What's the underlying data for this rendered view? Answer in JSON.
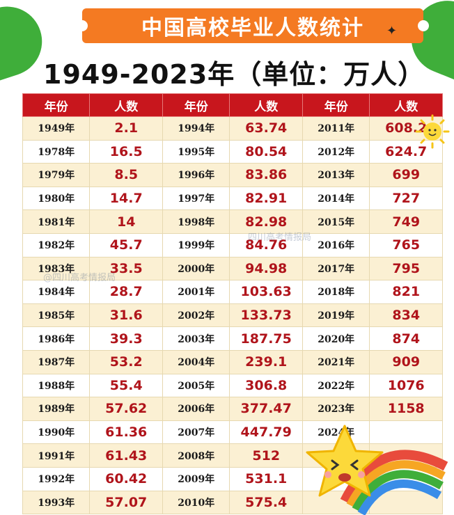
{
  "title": "中国高校毕业人数统计",
  "subtitle": "1949-2023年（单位：万人）",
  "table": {
    "headers": [
      "年份",
      "人数",
      "年份",
      "人数",
      "年份",
      "人数"
    ],
    "rows": [
      [
        "1949年",
        "2.1",
        "1994年",
        "63.74",
        "2011年",
        "608.2"
      ],
      [
        "1978年",
        "16.5",
        "1995年",
        "80.54",
        "2012年",
        "624.7"
      ],
      [
        "1979年",
        "8.5",
        "1996年",
        "83.86",
        "2013年",
        "699"
      ],
      [
        "1980年",
        "14.7",
        "1997年",
        "82.91",
        "2014年",
        "727"
      ],
      [
        "1981年",
        "14",
        "1998年",
        "82.98",
        "2015年",
        "749"
      ],
      [
        "1982年",
        "45.7",
        "1999年",
        "84.76",
        "2016年",
        "765"
      ],
      [
        "1983年",
        "33.5",
        "2000年",
        "94.98",
        "2017年",
        "795"
      ],
      [
        "1984年",
        "28.7",
        "2001年",
        "103.63",
        "2018年",
        "821"
      ],
      [
        "1985年",
        "31.6",
        "2002年",
        "133.73",
        "2019年",
        "834"
      ],
      [
        "1986年",
        "39.3",
        "2003年",
        "187.75",
        "2020年",
        "874"
      ],
      [
        "1987年",
        "53.2",
        "2004年",
        "239.1",
        "2021年",
        "909"
      ],
      [
        "1988年",
        "55.4",
        "2005年",
        "306.8",
        "2022年",
        "1076"
      ],
      [
        "1989年",
        "57.62",
        "2006年",
        "377.47",
        "2023年",
        "1158"
      ],
      [
        "1990年",
        "61.36",
        "2007年",
        "447.79",
        "2024年",
        ""
      ],
      [
        "1991年",
        "61.43",
        "2008年",
        "512",
        "20",
        ""
      ],
      [
        "1992年",
        "60.42",
        "2009年",
        "531.1",
        "",
        ""
      ],
      [
        "1993年",
        "57.07",
        "2010年",
        "575.4",
        "",
        ""
      ]
    ]
  },
  "watermarks": [
    "@四川高考情报局",
    "四川高考情报局"
  ],
  "colors": {
    "banner": "#f47a22",
    "header": "#c8161d",
    "row_alt": "#fbf0d3",
    "number": "#b0141b",
    "deco_green": "#3fae3a"
  }
}
